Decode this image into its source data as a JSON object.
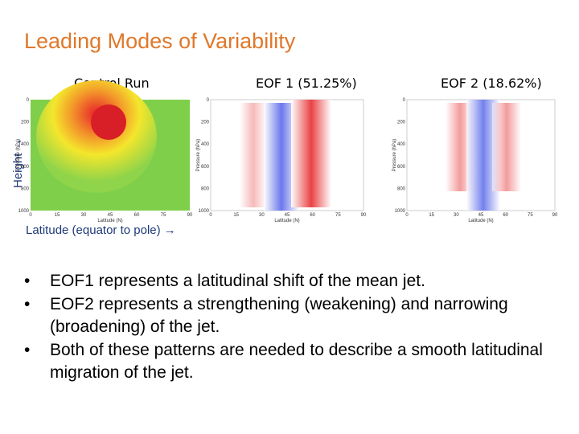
{
  "header": {
    "title": "Leading Modes of Variability"
  },
  "figure": {
    "y_axis_note": "Height →",
    "x_axis_note": "Latitude (equator to pole) →",
    "panels": [
      {
        "title": "Control Run"
      },
      {
        "title": "EOF 1 (51.25%)"
      },
      {
        "title": "EOF 2 (18.62%)"
      }
    ],
    "axes": {
      "x_label": "Latitude (N)",
      "y_label": "Pressure (hPa)",
      "x_ticks": [
        "0",
        "15",
        "30",
        "45",
        "60",
        "75",
        "90"
      ],
      "y_ticks": [
        "0",
        "200",
        "400",
        "600",
        "800",
        "1000"
      ]
    }
  },
  "bullets": [
    "EOF1 represents a latitudinal shift of the mean jet.",
    "EOF2 represents a strengthening (weakening) and narrowing (broadening) of the jet.",
    "Both of these patterns are needed to describe a smooth latitudinal migration of the jet."
  ]
}
